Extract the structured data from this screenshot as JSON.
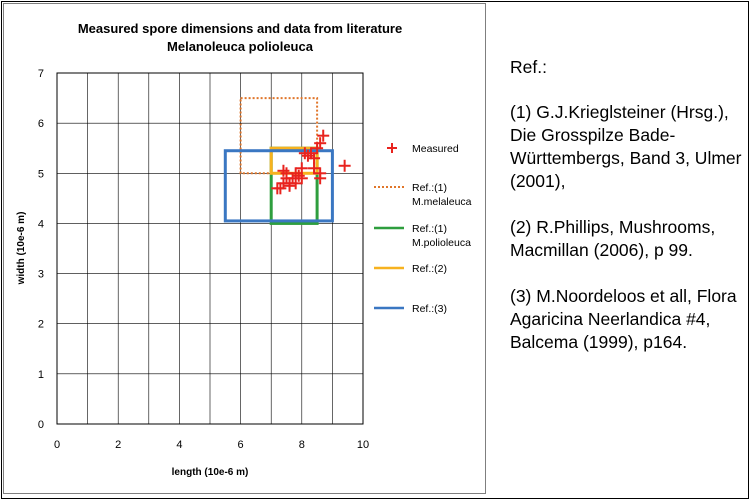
{
  "chart_data": {
    "type": "scatter",
    "title": "Measured spore dimensions and data from literature",
    "subtitle": "Melanoleuca polioleuca",
    "xlabel": "length (10e-6 m)",
    "ylabel": "width (10e-6 m)",
    "xlim": [
      0,
      10
    ],
    "ylim": [
      0,
      7
    ],
    "xticks": [
      "0",
      "2",
      "4",
      "6",
      "8",
      "10"
    ],
    "yticks": [
      "0",
      "1",
      "2",
      "3",
      "4",
      "5",
      "6",
      "7"
    ],
    "grid": true,
    "legend_position": "right",
    "series": [
      {
        "name": "Measured",
        "kind": "points",
        "color": "#e8231e",
        "points": [
          [
            7.3,
            4.7
          ],
          [
            7.4,
            4.8
          ],
          [
            7.5,
            4.9
          ],
          [
            7.6,
            4.8
          ],
          [
            7.7,
            4.9
          ],
          [
            7.8,
            4.8
          ],
          [
            7.9,
            4.95
          ],
          [
            7.5,
            5.0
          ],
          [
            7.8,
            5.0
          ],
          [
            8.0,
            4.9
          ],
          [
            7.6,
            4.75
          ],
          [
            8.0,
            5.1
          ],
          [
            8.1,
            5.4
          ],
          [
            8.2,
            5.35
          ],
          [
            8.3,
            5.4
          ],
          [
            8.4,
            5.3
          ],
          [
            8.5,
            5.5
          ],
          [
            8.6,
            5.6
          ],
          [
            8.7,
            5.75
          ],
          [
            8.6,
            5.0
          ],
          [
            8.6,
            4.9
          ],
          [
            8.4,
            5.1
          ],
          [
            9.4,
            5.15
          ],
          [
            7.4,
            5.05
          ],
          [
            7.2,
            4.7
          ]
        ]
      },
      {
        "name": "Ref.:(1) M.melaleuca",
        "kind": "range",
        "color": "#e0762a",
        "dash": "dotted",
        "length": [
          6.0,
          8.5
        ],
        "width": [
          5.0,
          6.5
        ]
      },
      {
        "name": "Ref.:(1) M.polioleuca",
        "kind": "range",
        "color": "#2e9e3e",
        "dash": "solid",
        "length": [
          7.0,
          8.5
        ],
        "width": [
          4.0,
          5.5
        ]
      },
      {
        "name": "Ref.:(2)",
        "kind": "range",
        "color": "#f7b21f",
        "dash": "solid",
        "length": [
          7.0,
          8.5
        ],
        "width": [
          5.0,
          5.5
        ]
      },
      {
        "name": "Ref.:(3)",
        "kind": "range",
        "color": "#3a77c2",
        "dash": "solid",
        "length": [
          5.5,
          9.0
        ],
        "width": [
          4.05,
          5.45
        ]
      }
    ],
    "legend": [
      {
        "lines": [
          "Measured"
        ]
      },
      {
        "lines": [
          "Ref.:(1)",
          "M.melaleuca"
        ]
      },
      {
        "lines": [
          "Ref.:(1)",
          "M.polioleuca"
        ]
      },
      {
        "lines": [
          "Ref.:(2)"
        ]
      },
      {
        "lines": [
          "Ref.:(3)"
        ]
      }
    ]
  },
  "references": {
    "title": "Ref.:",
    "items": [
      "(1) G.J.Krieglsteiner (Hrsg.), Die Grosspilze Bade-Württembergs, Band 3, Ulmer (2001),",
      "(2) R.Phillips, Mushrooms, Macmillan (2006), p 99.",
      "(3) M.Noordeloos et all, Flora Agaricina Neerlandica #4, Balcema (1999), p164."
    ]
  }
}
